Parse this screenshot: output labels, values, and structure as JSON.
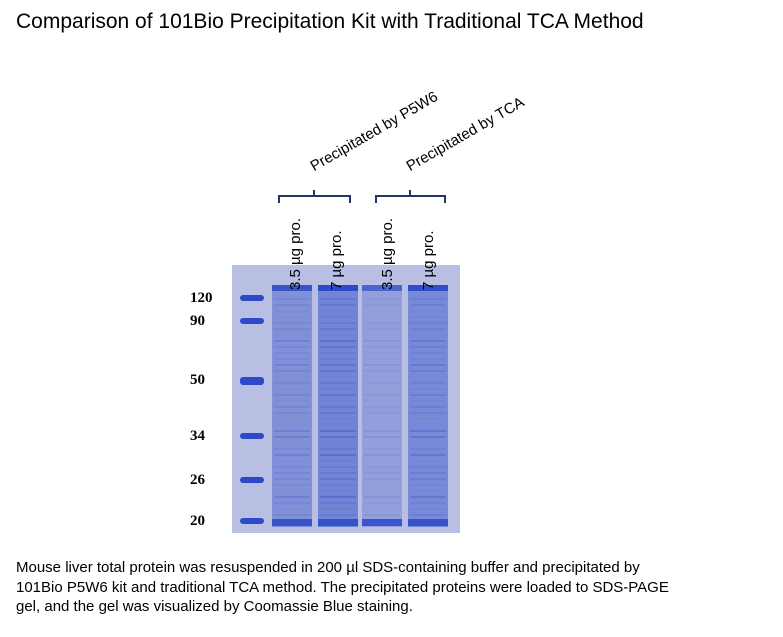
{
  "title": "Comparison of 101Bio Precipitation Kit with Traditional TCA Method",
  "groups": [
    {
      "label": "Precipitated by P5W6"
    },
    {
      "label": "Precipitated by TCA"
    }
  ],
  "lanes": [
    {
      "label": "3.5 µg pro.",
      "intensity": 0.7
    },
    {
      "label": "7 µg pro.",
      "intensity": 1.0
    },
    {
      "label": "3.5 µg pro.",
      "intensity": 0.35
    },
    {
      "label": "7 µg pro.",
      "intensity": 0.85
    }
  ],
  "ladder": [
    {
      "label": "120"
    },
    {
      "label": "90"
    },
    {
      "label": "50"
    },
    {
      "label": "34"
    },
    {
      "label": "26"
    },
    {
      "label": "20"
    }
  ],
  "colors": {
    "gel_background": "#b8bfe2",
    "band": "#2b49c9",
    "bracket": "#1f3864"
  },
  "caption": [
    "Mouse liver total protein was resuspended in 200 µl SDS-containing buffer and precipitated by",
    "101Bio P5W6 kit and traditional TCA method.   The precipitated proteins were loaded to SDS-PAGE",
    "gel, and the gel was visualized by Coomassie Blue staining."
  ]
}
